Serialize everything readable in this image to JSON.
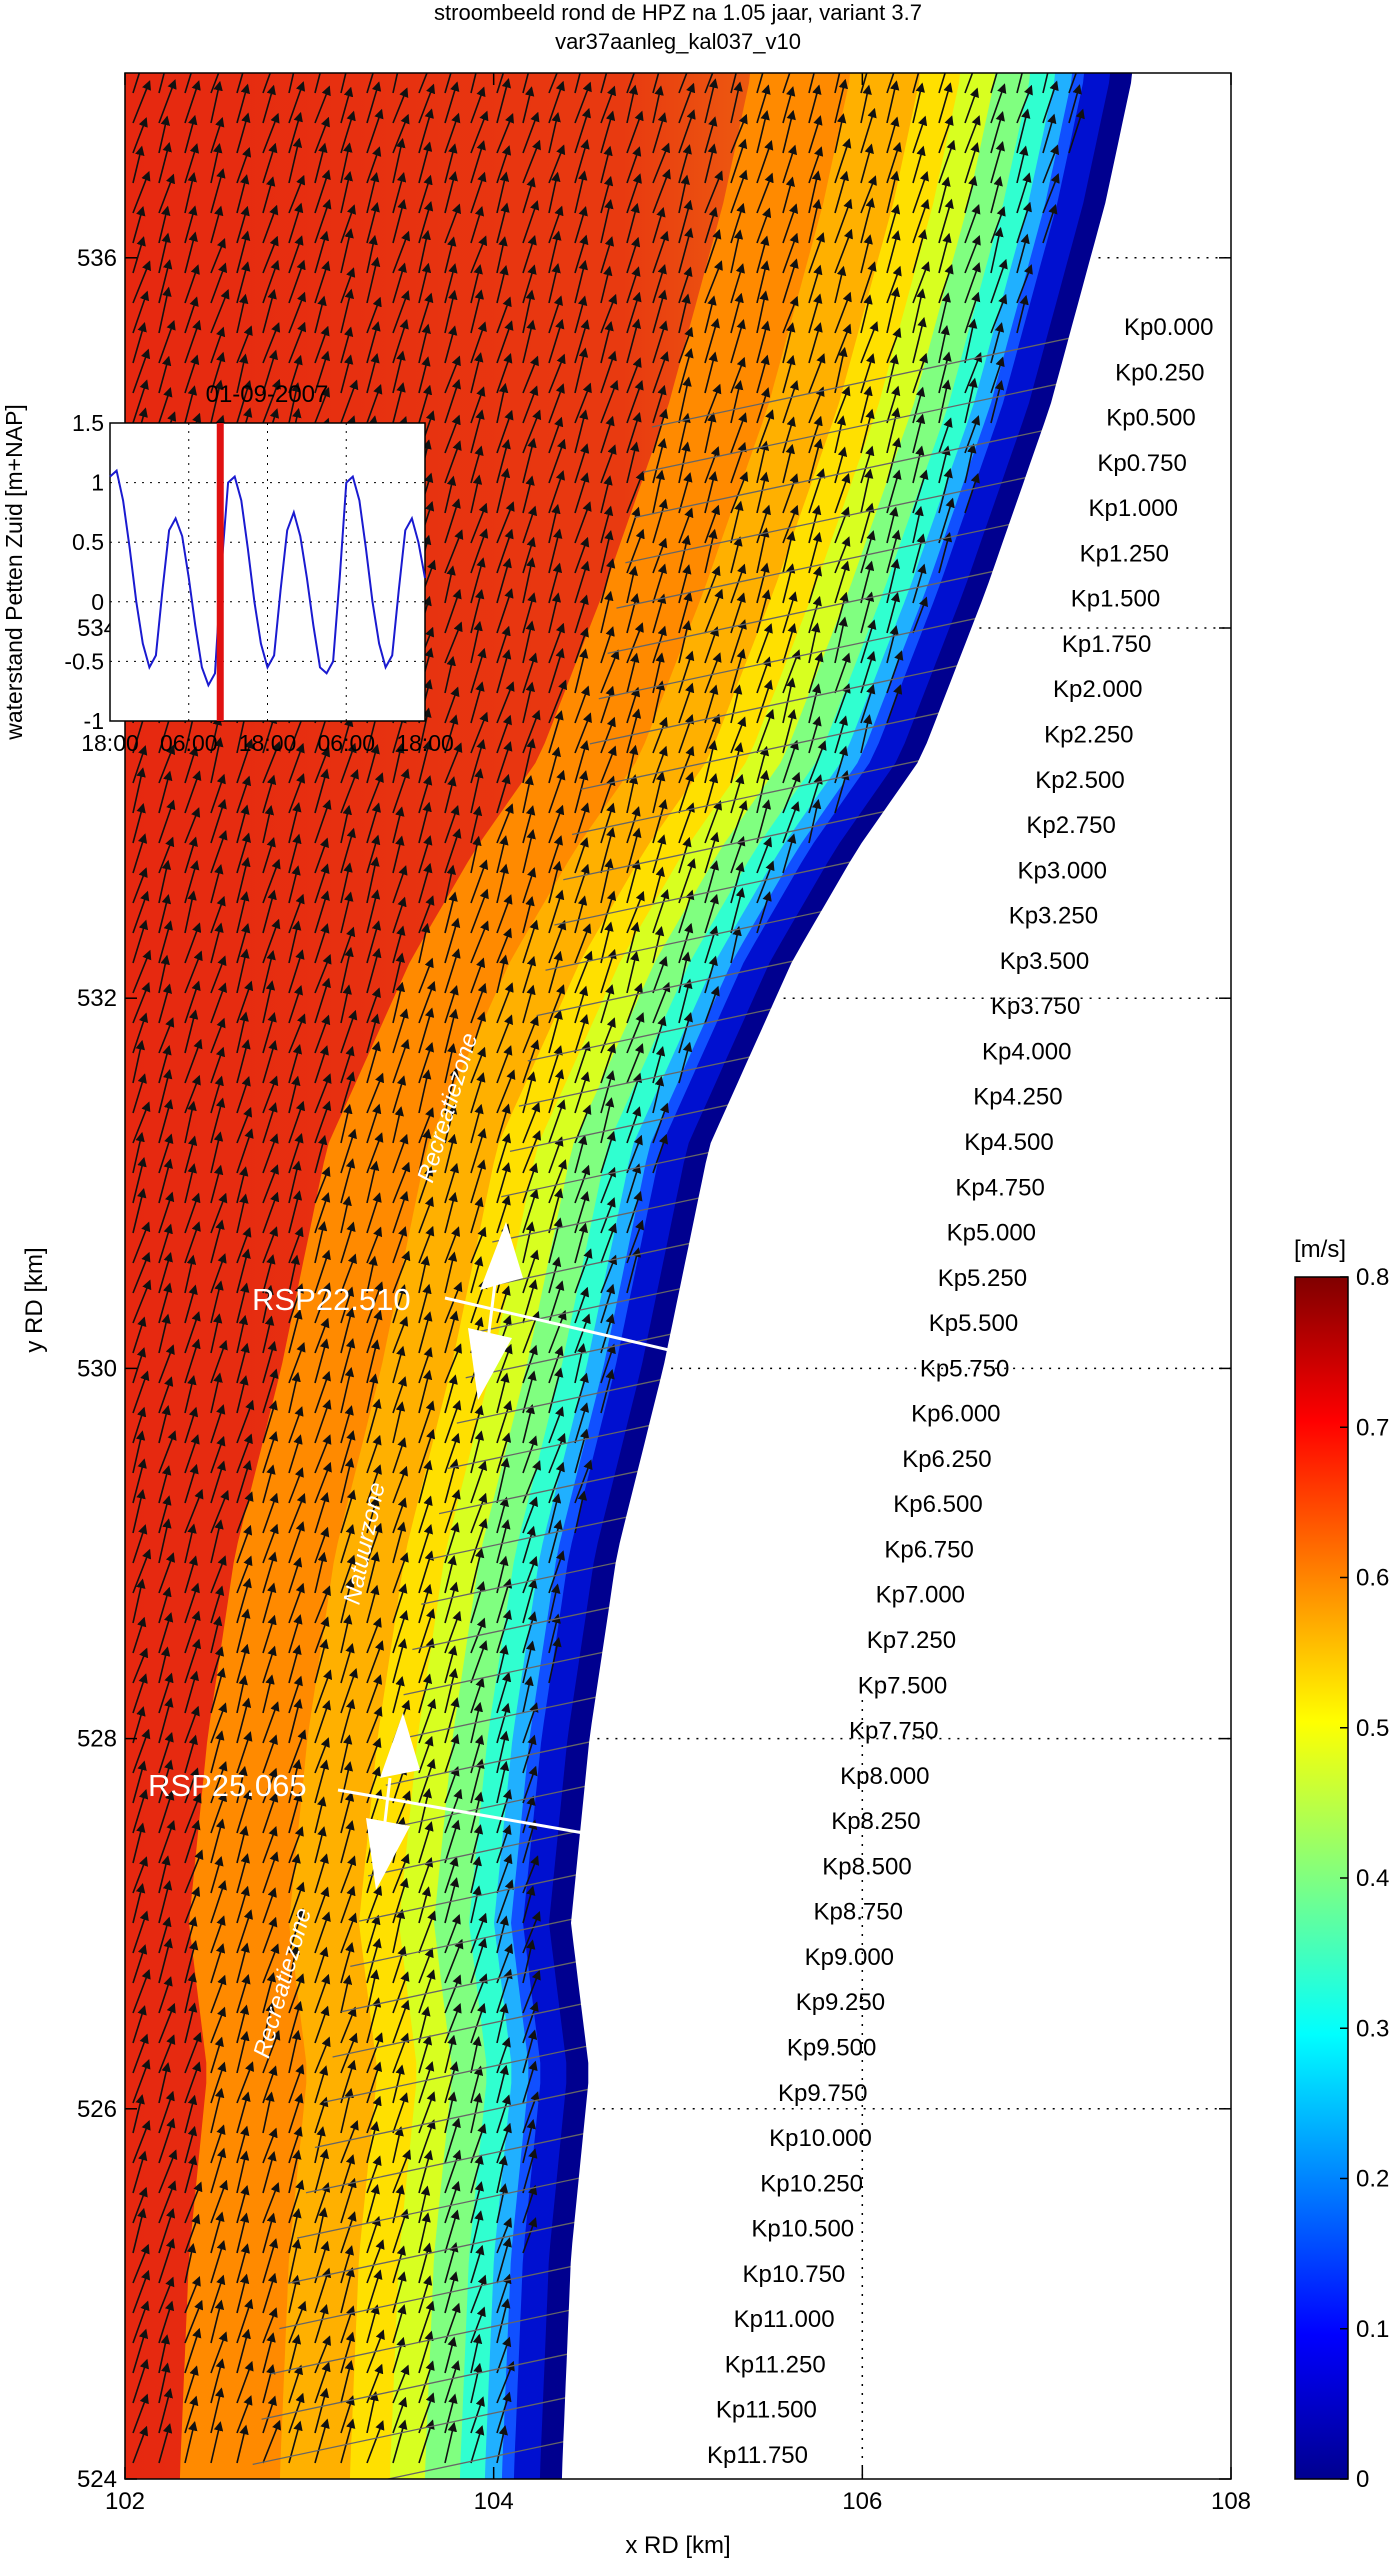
{
  "title_line1": "stroombeeld  rond de HPZ na 1.05 jaar, variant 3.7",
  "title_line2": "var37aanleg_kal037_v10",
  "chart_data": [
    {
      "type": "heatmap",
      "xlabel": "x RD [km]",
      "ylabel": "y RD [km]",
      "xlim": [
        102,
        108
      ],
      "ylim": [
        524,
        537
      ],
      "x_ticks": [
        102,
        104,
        106,
        108
      ],
      "y_ticks": [
        524,
        526,
        528,
        530,
        532,
        534,
        536
      ],
      "grid": "dotted, partial",
      "colorbar": {
        "label": "[m/s]",
        "range": [
          0,
          0.8
        ],
        "ticks": [
          0,
          0.1,
          0.2,
          0.3,
          0.4,
          0.5,
          0.6,
          0.7,
          0.8
        ],
        "colormap": "jet"
      },
      "coastline_km": [
        {
          "x": 107.35,
          "y": 537.0
        },
        {
          "x": 107.2,
          "y": 536.3
        },
        {
          "x": 106.9,
          "y": 535.2
        },
        {
          "x": 106.55,
          "y": 534.2
        },
        {
          "x": 106.2,
          "y": 533.3
        },
        {
          "x": 105.85,
          "y": 532.8
        },
        {
          "x": 105.5,
          "y": 532.2
        },
        {
          "x": 105.05,
          "y": 531.2
        },
        {
          "x": 104.8,
          "y": 530.0
        },
        {
          "x": 104.55,
          "y": 529.0
        },
        {
          "x": 104.4,
          "y": 528.0
        },
        {
          "x": 104.3,
          "y": 527.0
        },
        {
          "x": 104.4,
          "y": 526.2
        },
        {
          "x": 104.3,
          "y": 525.2
        },
        {
          "x": 104.25,
          "y": 524.0
        }
      ],
      "kilometer_posts": [
        "Kp0.000",
        "Kp0.250",
        "Kp0.500",
        "Kp0.750",
        "Kp1.000",
        "Kp1.250",
        "Kp1.500",
        "Kp1.750",
        "Kp2.000",
        "Kp2.250",
        "Kp2.500",
        "Kp2.750",
        "Kp3.000",
        "Kp3.250",
        "Kp3.500",
        "Kp3.750",
        "Kp4.000",
        "Kp4.250",
        "Kp4.500",
        "Kp4.750",
        "Kp5.000",
        "Kp5.250",
        "Kp5.500",
        "Kp5.750",
        "Kp6.000",
        "Kp6.250",
        "Kp6.500",
        "Kp6.750",
        "Kp7.000",
        "Kp7.250",
        "Kp7.500",
        "Kp7.750",
        "Kp8.000",
        "Kp8.250",
        "Kp8.500",
        "Kp8.750",
        "Kp9.000",
        "Kp9.250",
        "Kp9.500",
        "Kp9.750",
        "Kp10.000",
        "Kp10.250",
        "Kp10.500",
        "Kp10.750",
        "Kp11.000",
        "Kp11.250",
        "Kp11.500",
        "Kp11.750"
      ],
      "zone_labels": [
        "Recreatiezone",
        "Natuurzone",
        "Recreatiezone"
      ],
      "section_labels": [
        "RSP22.510",
        "RSP25.065"
      ]
    },
    {
      "type": "line",
      "title": "01-09-2007",
      "ylabel": "waterstand Petten Zuid [m+NAP]",
      "ylim": [
        -1,
        1.5
      ],
      "y_ticks": [
        "1.5",
        "1",
        "0.5",
        "0",
        "-0.5",
        "-1"
      ],
      "x_ticks": [
        "18:00",
        "06:00",
        "18:00",
        "06:00",
        "18:00"
      ],
      "x_hours": [
        0,
        48
      ],
      "current_time_marker_hour": 16.8,
      "series": [
        {
          "x": [
            0,
            1,
            2,
            3,
            4,
            5,
            6,
            7,
            8,
            9,
            10,
            11,
            12,
            13,
            14,
            15,
            16,
            17,
            18,
            19,
            20,
            21,
            22,
            23,
            24,
            25,
            26,
            27,
            28,
            29,
            30,
            31,
            32,
            33,
            34,
            35,
            36,
            37,
            38,
            39,
            40,
            41,
            42,
            43,
            44,
            45,
            46,
            47,
            48
          ],
          "y": [
            1.05,
            1.1,
            0.85,
            0.45,
            0.0,
            -0.35,
            -0.55,
            -0.45,
            0.1,
            0.6,
            0.7,
            0.55,
            0.2,
            -0.2,
            -0.55,
            -0.7,
            -0.6,
            0.3,
            1.0,
            1.05,
            0.85,
            0.45,
            0.0,
            -0.35,
            -0.55,
            -0.45,
            0.1,
            0.6,
            0.75,
            0.55,
            0.2,
            -0.2,
            -0.55,
            -0.6,
            -0.5,
            0.2,
            1.0,
            1.05,
            0.85,
            0.45,
            0.0,
            -0.35,
            -0.55,
            -0.45,
            0.1,
            0.6,
            0.7,
            0.5,
            0.2
          ]
        }
      ]
    }
  ]
}
